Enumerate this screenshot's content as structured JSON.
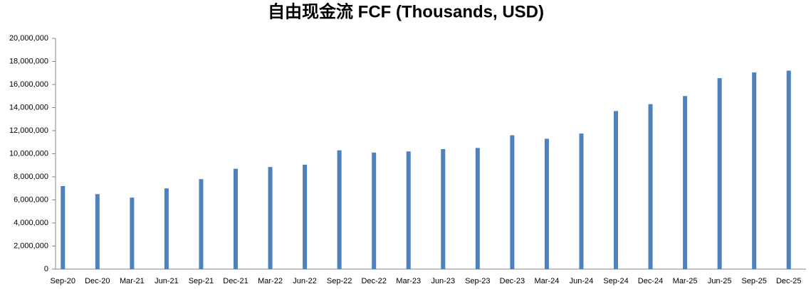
{
  "chart_data": {
    "type": "bar",
    "title": "自由现金流 FCF (Thousands, USD)",
    "categories": [
      "Sep-20",
      "Dec-20",
      "Mar-21",
      "Jun-21",
      "Sep-21",
      "Dec-21",
      "Mar-22",
      "Jun-22",
      "Sep-22",
      "Dec-22",
      "Mar-23",
      "Jun-23",
      "Sep-23",
      "Dec-23",
      "Mar-24",
      "Jun-24",
      "Sep-24",
      "Dec-24",
      "Mar-25",
      "Jun-25",
      "Sep-25",
      "Dec-25"
    ],
    "values": [
      7200000,
      6500000,
      6200000,
      7000000,
      7800000,
      8700000,
      8850000,
      9050000,
      10300000,
      10100000,
      10200000,
      10400000,
      10500000,
      11600000,
      11300000,
      11750000,
      13700000,
      14300000,
      15000000,
      16550000,
      17050000,
      17200000
    ],
    "color": "#4f81bd",
    "ylim": [
      0,
      20000000
    ],
    "yticks": [
      {
        "value": 0,
        "label": "0"
      },
      {
        "value": 2000000,
        "label": "2,000,000"
      },
      {
        "value": 4000000,
        "label": "4,000,000"
      },
      {
        "value": 6000000,
        "label": "6,000,000"
      },
      {
        "value": 8000000,
        "label": "8,000,000"
      },
      {
        "value": 10000000,
        "label": "10,000,000"
      },
      {
        "value": 12000000,
        "label": "12,000,000"
      },
      {
        "value": 14000000,
        "label": "14,000,000"
      },
      {
        "value": 16000000,
        "label": "16,000,000"
      },
      {
        "value": 18000000,
        "label": "18,000,000"
      },
      {
        "value": 20000000,
        "label": "20,000,000"
      }
    ],
    "grid": false
  }
}
